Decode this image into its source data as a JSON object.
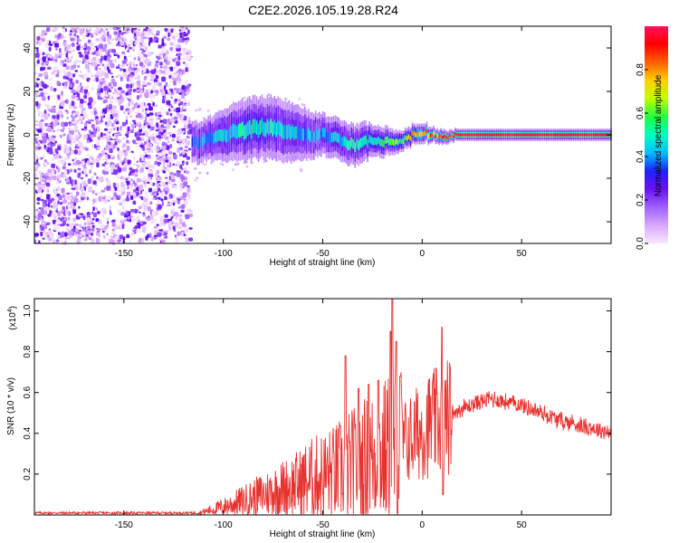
{
  "title": "C2E2.2026.105.19.28.R24",
  "colors": {
    "snr_line": "#e8322e",
    "spectrogram_background": "#ffffff",
    "colormap": [
      "#f7e8ff",
      "#d8a8ff",
      "#a060ff",
      "#6a10f0",
      "#2020ff",
      "#00c0ff",
      "#00ffc0",
      "#20ff40",
      "#c0ff00",
      "#ffd000",
      "#ff6000",
      "#ff0000",
      "#ff1060"
    ]
  },
  "chart_data": [
    {
      "type": "heatmap",
      "name": "spectrogram",
      "xlabel": "Height of straight line (km)",
      "ylabel": "Frequency (Hz)",
      "xlim": [
        -195,
        95
      ],
      "ylim": [
        -50,
        50
      ],
      "xticks": [
        -150,
        -100,
        -50,
        0,
        50
      ],
      "yticks": [
        -40,
        -20,
        0,
        20,
        40
      ],
      "xtick_labels": [
        "-150",
        "-100",
        "-50",
        "0",
        "50"
      ],
      "ytick_labels": [
        "-40",
        "-20",
        "0",
        "20",
        "40"
      ],
      "noise_region_x": [
        -195,
        -116
      ],
      "signal_track": {
        "x": [
          -116,
          -110,
          -100,
          -90,
          -80,
          -70,
          -60,
          -50,
          -40,
          -35,
          -30,
          -25,
          -20,
          -15,
          -10,
          -5,
          0,
          5,
          10,
          15,
          18,
          30,
          50,
          70,
          93
        ],
        "freq": [
          -4,
          -3,
          0,
          2,
          3.5,
          2,
          0,
          0,
          -3,
          -5,
          -4,
          -2,
          -3,
          -4,
          -2,
          0,
          1,
          0,
          -1,
          0,
          0,
          0,
          0,
          0,
          0
        ],
        "halfwidth": [
          4,
          4,
          5,
          6,
          6,
          6,
          5,
          4,
          4,
          4,
          4,
          3,
          3,
          2.5,
          2,
          2,
          2,
          1.5,
          1.5,
          1.2,
          1.2,
          1.2,
          1.2,
          1.2,
          1.2
        ],
        "peak_amplitude": [
          0.35,
          0.4,
          0.45,
          0.5,
          0.5,
          0.45,
          0.4,
          0.4,
          0.45,
          0.5,
          0.5,
          0.5,
          0.55,
          0.6,
          0.65,
          0.7,
          0.75,
          0.8,
          0.85,
          0.9,
          0.95,
          0.95,
          0.95,
          0.95,
          0.95
        ]
      },
      "colorbar": {
        "label": "Normalized spectral amplitude",
        "range": [
          0,
          1
        ],
        "ticks": [
          0.0,
          0.2,
          0.4,
          0.6,
          0.8
        ],
        "tick_labels": [
          "0.0",
          "0.2",
          "0.4",
          "0.6",
          "0.8"
        ]
      }
    },
    {
      "type": "line",
      "name": "snr",
      "xlabel": "Height of straight line (km)",
      "ylabel": "SNR (10 * v/v)",
      "scale_label": "(x10",
      "scale_exponent": "4",
      "scale_close": ")",
      "xlim": [
        -195,
        95
      ],
      "ylim": [
        0,
        1.06
      ],
      "xticks": [
        -150,
        -100,
        -50,
        0,
        50
      ],
      "yticks": [
        0.2,
        0.4,
        0.6,
        0.8,
        1.0
      ],
      "xtick_labels": [
        "-150",
        "-100",
        "-50",
        "0",
        "50"
      ],
      "ytick_labels": [
        "0.2",
        "0.4",
        "0.6",
        "0.8",
        "1.0"
      ],
      "envelope": {
        "x": [
          -195,
          -112,
          -108,
          -100,
          -90,
          -80,
          -70,
          -60,
          -50,
          -45,
          -40,
          -35,
          -30,
          -25,
          -20,
          -15,
          -10,
          -5,
          0,
          5,
          10,
          15,
          20,
          25,
          30,
          35,
          40,
          50,
          60,
          70,
          80,
          93
        ],
        "y": [
          0.01,
          0.01,
          0.02,
          0.04,
          0.07,
          0.1,
          0.13,
          0.16,
          0.19,
          0.2,
          0.22,
          0.24,
          0.26,
          0.28,
          0.3,
          0.33,
          0.35,
          0.38,
          0.42,
          0.45,
          0.46,
          0.5,
          0.52,
          0.54,
          0.56,
          0.57,
          0.56,
          0.54,
          0.5,
          0.46,
          0.44,
          0.41
        ]
      },
      "spikes": [
        {
          "x": -38.5,
          "y": 0.78
        },
        {
          "x": -32,
          "y": 0.62
        },
        {
          "x": -27,
          "y": 0.64
        },
        {
          "x": -22,
          "y": 0.66
        },
        {
          "x": -16,
          "y": 0.9
        },
        {
          "x": -15,
          "y": 1.06
        },
        {
          "x": -13,
          "y": 0.85
        },
        {
          "x": -11,
          "y": 0.68
        },
        {
          "x": 10,
          "y": 0.92
        },
        {
          "x": 10.5,
          "y": 0.1
        }
      ]
    }
  ]
}
